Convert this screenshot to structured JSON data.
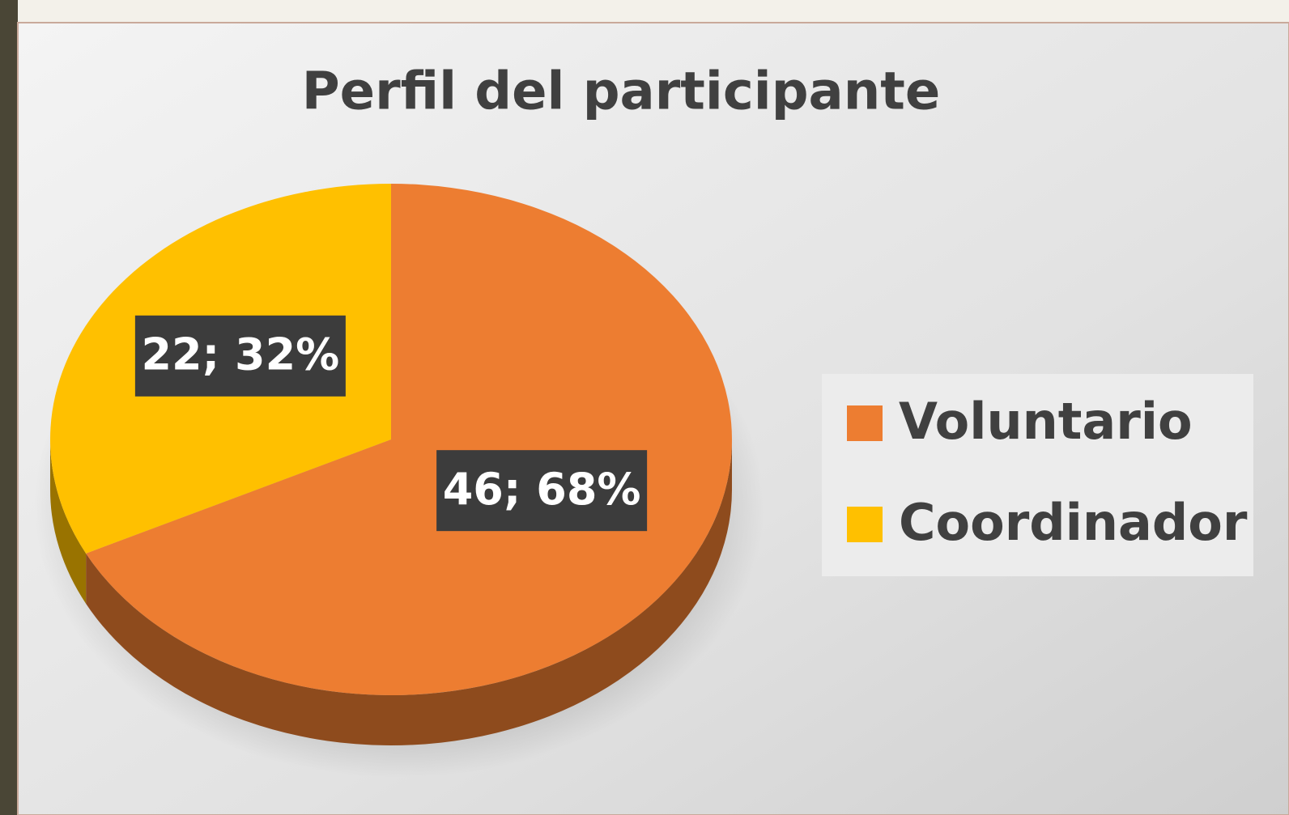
{
  "chart_data": {
    "type": "pie",
    "title": "Perfil del participante",
    "categories": [
      "Voluntario",
      "Coordinador"
    ],
    "values": [
      46,
      22
    ],
    "value_labels": [
      "46; 68%",
      "22; 32%"
    ],
    "colors": [
      "#ED7D31",
      "#FFC000"
    ],
    "legend": "right"
  }
}
